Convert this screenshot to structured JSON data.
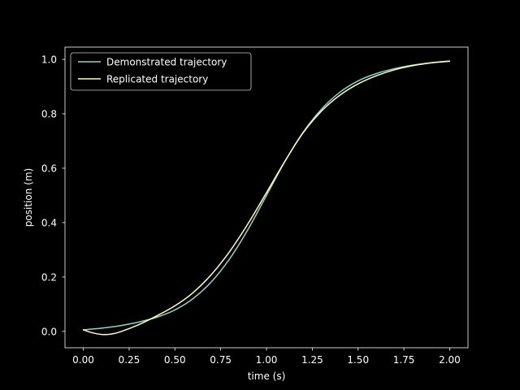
{
  "chart_data": {
    "type": "line",
    "title": "",
    "xlabel": "time (s)",
    "ylabel": "position (m)",
    "xlim": [
      -0.1,
      2.1
    ],
    "ylim": [
      -0.06,
      1.045
    ],
    "xticks": [
      0.0,
      0.25,
      0.5,
      0.75,
      1.0,
      1.25,
      1.5,
      1.75,
      2.0
    ],
    "xtick_labels": [
      "0.00",
      "0.25",
      "0.50",
      "0.75",
      "1.00",
      "1.25",
      "1.50",
      "1.75",
      "2.00"
    ],
    "yticks": [
      0.0,
      0.2,
      0.4,
      0.6,
      0.8,
      1.0
    ],
    "ytick_labels": [
      "0.0",
      "0.2",
      "0.4",
      "0.6",
      "0.8",
      "1.0"
    ],
    "grid": false,
    "legend_position": "top-left",
    "background": "#000000",
    "axes_color": "#ffffff",
    "series": [
      {
        "name": "Demonstrated trajectory",
        "color": "#8dd3c7",
        "x": [
          0.0,
          0.1,
          0.2,
          0.3,
          0.4,
          0.5,
          0.6,
          0.7,
          0.8,
          0.9,
          1.0,
          1.1,
          1.2,
          1.3,
          1.4,
          1.5,
          1.6,
          1.7,
          1.8,
          1.9,
          2.0
        ],
        "y": [
          0.006,
          0.012,
          0.021,
          0.034,
          0.052,
          0.079,
          0.121,
          0.183,
          0.268,
          0.376,
          0.5,
          0.624,
          0.732,
          0.817,
          0.879,
          0.921,
          0.948,
          0.966,
          0.979,
          0.988,
          0.994
        ]
      },
      {
        "name": "Replicated trajectory",
        "color": "#ffffb3",
        "x": [
          0.0,
          0.05,
          0.1,
          0.15,
          0.2,
          0.3,
          0.4,
          0.5,
          0.6,
          0.7,
          0.8,
          0.9,
          1.0,
          1.1,
          1.2,
          1.3,
          1.4,
          1.5,
          1.6,
          1.7,
          1.8,
          1.9,
          2.0
        ],
        "y": [
          0.006,
          -0.005,
          -0.011,
          -0.01,
          -0.002,
          0.024,
          0.057,
          0.094,
          0.143,
          0.21,
          0.295,
          0.397,
          0.51,
          0.625,
          0.73,
          0.81,
          0.868,
          0.91,
          0.94,
          0.962,
          0.977,
          0.987,
          0.993
        ]
      }
    ]
  }
}
